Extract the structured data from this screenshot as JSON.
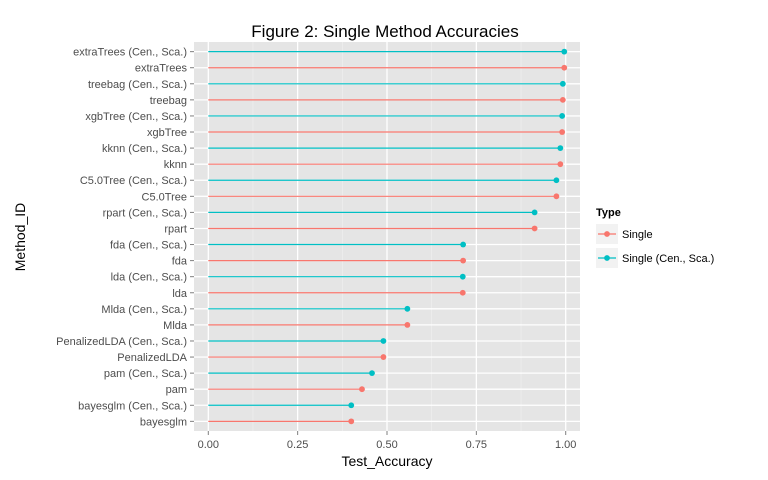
{
  "chart_data": {
    "type": "lollipop",
    "title": "Figure 2: Single Method Accuracies",
    "xlabel": "Test_Accuracy",
    "ylabel": "Method_ID",
    "xlim": [
      -0.04,
      1.04
    ],
    "xticks": [
      0,
      0.25,
      0.5,
      0.75,
      1
    ],
    "xtick_labels": [
      "0.00",
      "0.25",
      "0.50",
      "0.75",
      "1.00"
    ],
    "grid": true,
    "legend": {
      "title": "Type",
      "placement": "right",
      "entries": [
        {
          "name": "Single",
          "color": "#F8766D"
        },
        {
          "name": "Single (Cen., Sca.)",
          "color": "#00BFC4"
        }
      ]
    },
    "points": [
      {
        "label": "extraTrees (Cen., Sca.)",
        "value": 0.996,
        "type": "Single (Cen., Sca.)"
      },
      {
        "label": "extraTrees",
        "value": 0.996,
        "type": "Single"
      },
      {
        "label": "treebag (Cen., Sca.)",
        "value": 0.992,
        "type": "Single (Cen., Sca.)"
      },
      {
        "label": "treebag",
        "value": 0.992,
        "type": "Single"
      },
      {
        "label": "xgbTree (Cen., Sca.)",
        "value": 0.99,
        "type": "Single (Cen., Sca.)"
      },
      {
        "label": "xgbTree",
        "value": 0.99,
        "type": "Single"
      },
      {
        "label": "kknn (Cen., Sca.)",
        "value": 0.985,
        "type": "Single (Cen., Sca.)"
      },
      {
        "label": "kknn",
        "value": 0.985,
        "type": "Single"
      },
      {
        "label": "C5.0Tree (Cen., Sca.)",
        "value": 0.974,
        "type": "Single (Cen., Sca.)"
      },
      {
        "label": "C5.0Tree",
        "value": 0.974,
        "type": "Single"
      },
      {
        "label": "rpart (Cen., Sca.)",
        "value": 0.913,
        "type": "Single (Cen., Sca.)"
      },
      {
        "label": "rpart",
        "value": 0.913,
        "type": "Single"
      },
      {
        "label": "fda (Cen., Sca.)",
        "value": 0.713,
        "type": "Single (Cen., Sca.)"
      },
      {
        "label": "fda",
        "value": 0.713,
        "type": "Single"
      },
      {
        "label": "lda (Cen., Sca.)",
        "value": 0.712,
        "type": "Single (Cen., Sca.)"
      },
      {
        "label": "lda",
        "value": 0.712,
        "type": "Single"
      },
      {
        "label": "Mlda (Cen., Sca.)",
        "value": 0.557,
        "type": "Single (Cen., Sca.)"
      },
      {
        "label": "Mlda",
        "value": 0.557,
        "type": "Single"
      },
      {
        "label": "PenalizedLDA (Cen., Sca.)",
        "value": 0.49,
        "type": "Single (Cen., Sca.)"
      },
      {
        "label": "PenalizedLDA",
        "value": 0.49,
        "type": "Single"
      },
      {
        "label": "pam (Cen., Sca.)",
        "value": 0.458,
        "type": "Single (Cen., Sca.)"
      },
      {
        "label": "pam",
        "value": 0.43,
        "type": "Single"
      },
      {
        "label": "bayesglm (Cen., Sca.)",
        "value": 0.4,
        "type": "Single (Cen., Sca.)"
      },
      {
        "label": "bayesglm",
        "value": 0.4,
        "type": "Single"
      }
    ]
  }
}
